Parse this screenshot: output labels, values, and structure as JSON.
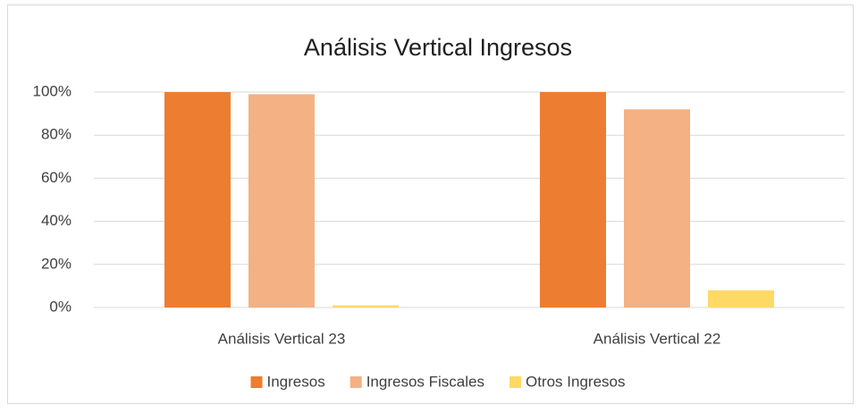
{
  "chart_data": {
    "type": "bar",
    "title": "Análisis Vertical Ingresos",
    "categories": [
      "Análisis Vertical 23",
      "Análisis Vertical 22"
    ],
    "series": [
      {
        "name": "Ingresos",
        "color": "#ed7d31",
        "values": [
          100,
          100
        ]
      },
      {
        "name": "Ingresos Fiscales",
        "color": "#f4b183",
        "values": [
          99,
          92
        ]
      },
      {
        "name": "Otros Ingresos",
        "color": "#ffd966",
        "values": [
          1,
          8
        ]
      }
    ],
    "ylim": [
      0,
      100
    ],
    "yticks": [
      {
        "value": 0,
        "label": "0%"
      },
      {
        "value": 20,
        "label": "20%"
      },
      {
        "value": 40,
        "label": "40%"
      },
      {
        "value": 60,
        "label": "60%"
      },
      {
        "value": 80,
        "label": "80%"
      },
      {
        "value": 100,
        "label": "100%"
      }
    ],
    "grid": true,
    "legend": "bottom"
  }
}
